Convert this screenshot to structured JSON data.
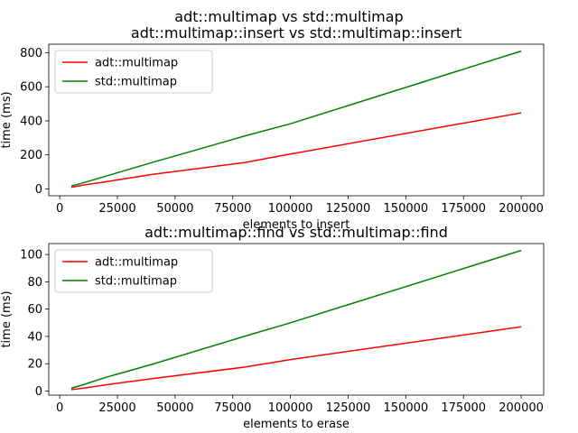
{
  "figure_title": "adt::multimap vs std::multimap",
  "chart_data": [
    {
      "type": "line",
      "title": "adt::multimap::insert vs std::multimap::insert",
      "xlabel": "elements to insert",
      "ylabel": "time (ms)",
      "xlim": [
        -4750,
        209750
      ],
      "ylim": [
        -40,
        850
      ],
      "xticks": [
        0,
        25000,
        50000,
        75000,
        100000,
        125000,
        150000,
        175000,
        200000
      ],
      "yticks": [
        0,
        200,
        400,
        600,
        800
      ],
      "legend": "top-left",
      "series": [
        {
          "name": "adt::multimap",
          "color": "#ff0000",
          "x": [
            5000,
            10000,
            20000,
            40000,
            80000,
            100000,
            200000
          ],
          "y": [
            10,
            22,
            42,
            85,
            155,
            205,
            447
          ]
        },
        {
          "name": "std::multimap",
          "color": "#008000",
          "x": [
            5000,
            10000,
            20000,
            40000,
            80000,
            100000,
            200000
          ],
          "y": [
            17,
            35,
            75,
            155,
            310,
            383,
            810
          ]
        }
      ]
    },
    {
      "type": "line",
      "title": "adt::multimap::find vs std::multimap::find",
      "xlabel": "elements to erase",
      "ylabel": "time (ms)",
      "xlim": [
        -4750,
        209750
      ],
      "ylim": [
        -3,
        108
      ],
      "xticks": [
        0,
        25000,
        50000,
        75000,
        100000,
        125000,
        150000,
        175000,
        200000
      ],
      "yticks": [
        0,
        20,
        40,
        60,
        80,
        100
      ],
      "legend": "top-left",
      "series": [
        {
          "name": "adt::multimap",
          "color": "#ff0000",
          "x": [
            5000,
            10000,
            20000,
            40000,
            80000,
            100000,
            200000
          ],
          "y": [
            1,
            2,
            4.5,
            9,
            17.5,
            23,
            47
          ]
        },
        {
          "name": "std::multimap",
          "color": "#008000",
          "x": [
            5000,
            10000,
            20000,
            40000,
            80000,
            100000,
            200000
          ],
          "y": [
            2,
            4.5,
            10,
            19.5,
            40,
            50,
            103
          ]
        }
      ]
    }
  ]
}
